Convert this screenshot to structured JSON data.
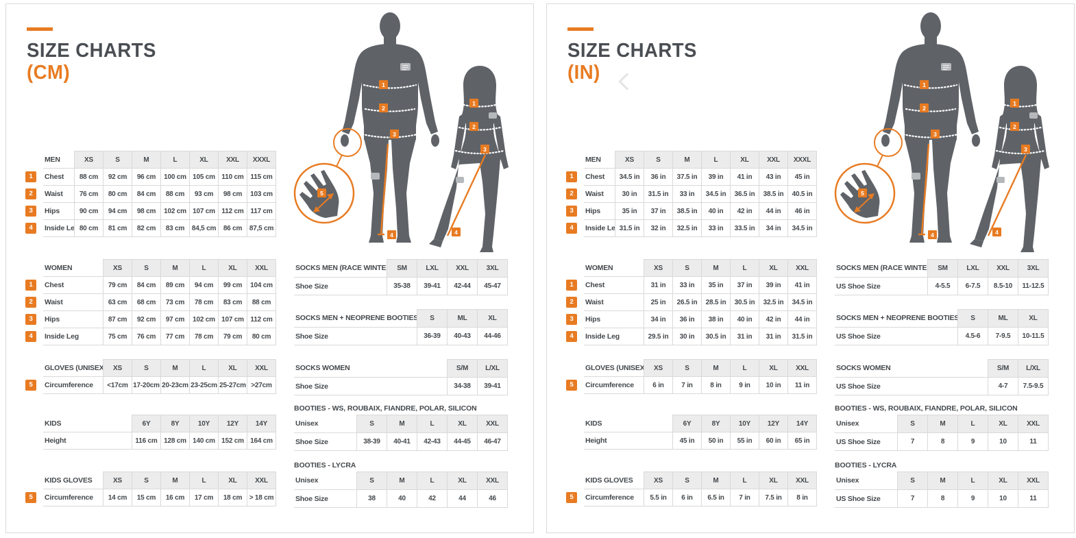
{
  "colors": {
    "accent_orange": "#e87b22",
    "heading_gray": "#4a4e53",
    "text_gray": "#44484c",
    "table_header_bg": "#ececec",
    "table_border": "#d9d9d9",
    "silhouette_gray": "#5f6368"
  },
  "figure": {
    "markers": {
      "m1": "1",
      "m2": "2",
      "m3": "3",
      "m4": "4",
      "m5": "5"
    }
  },
  "panels": {
    "cm": {
      "title": "SIZE CHARTS",
      "unit": "(CM)",
      "tables": {
        "men": {
          "label": "MEN",
          "cols": [
            "XS",
            "S",
            "M",
            "L",
            "XL",
            "XXL",
            "XXXL"
          ],
          "rows": [
            {
              "num": "1",
              "label": "Chest",
              "values": [
                "88 cm",
                "92 cm",
                "96 cm",
                "100 cm",
                "105 cm",
                "110 cm",
                "115 cm"
              ]
            },
            {
              "num": "2",
              "label": "Waist",
              "values": [
                "76 cm",
                "80 cm",
                "84 cm",
                "88 cm",
                "93 cm",
                "98 cm",
                "103 cm"
              ]
            },
            {
              "num": "3",
              "label": "Hips",
              "values": [
                "90 cm",
                "94 cm",
                "98 cm",
                "102 cm",
                "107 cm",
                "112 cm",
                "117 cm"
              ]
            },
            {
              "num": "4",
              "label": "Inside Leg",
              "values": [
                "80 cm",
                "81 cm",
                "82 cm",
                "83 cm",
                "84,5 cm",
                "86 cm",
                "87,5 cm"
              ]
            }
          ]
        },
        "women": {
          "label": "WOMEN",
          "cols": [
            "XS",
            "S",
            "M",
            "L",
            "XL",
            "XXL"
          ],
          "rows": [
            {
              "num": "1",
              "label": "Chest",
              "values": [
                "79 cm",
                "84 cm",
                "89 cm",
                "94 cm",
                "99 cm",
                "104 cm"
              ]
            },
            {
              "num": "2",
              "label": "Waist",
              "values": [
                "63 cm",
                "68 cm",
                "73 cm",
                "78 cm",
                "83 cm",
                "88 cm"
              ]
            },
            {
              "num": "3",
              "label": "Hips",
              "values": [
                "87 cm",
                "92 cm",
                "97 cm",
                "102 cm",
                "107 cm",
                "112 cm"
              ]
            },
            {
              "num": "4",
              "label": "Inside Leg",
              "values": [
                "75 cm",
                "76 cm",
                "77 cm",
                "78 cm",
                "79 cm",
                "80 cm"
              ]
            }
          ]
        },
        "gloves": {
          "label": "GLOVES (UNISEX)",
          "cols": [
            "XS",
            "S",
            "M",
            "L",
            "XL",
            "XXL"
          ],
          "rows": [
            {
              "num": "5",
              "label": "Circumference",
              "values": [
                "<17cm",
                "17-20cm",
                "20-23cm",
                "23-25cm",
                "25-27cm",
                ">27cm"
              ]
            }
          ]
        },
        "kids": {
          "label": "KIDS",
          "cols": [
            "6Y",
            "8Y",
            "10Y",
            "12Y",
            "14Y"
          ],
          "rows": [
            {
              "label": "Height",
              "values": [
                "116 cm",
                "128 cm",
                "140 cm",
                "152 cm",
                "164 cm"
              ]
            }
          ]
        },
        "kids_gloves": {
          "label": "KIDS GLOVES",
          "cols": [
            "XS",
            "S",
            "M",
            "L",
            "XL",
            "XXL"
          ],
          "rows": [
            {
              "num": "5",
              "label": "Circumference",
              "values": [
                "14 cm",
                "15 cm",
                "16 cm",
                "17 cm",
                "18 cm",
                "> 18 cm"
              ]
            }
          ]
        },
        "socks_men": {
          "label": "SOCKS MEN (RACE WINTER)",
          "cols": [
            "SM",
            "LXL",
            "XXL",
            "3XL"
          ],
          "rows": [
            {
              "label": "Shoe Size",
              "values": [
                "35-38",
                "39-41",
                "42-44",
                "45-47"
              ]
            }
          ]
        },
        "socks_neoprene": {
          "label": "SOCKS MEN + NEOPRENE BOOTIES",
          "cols": [
            "S",
            "ML",
            "XL"
          ],
          "rows": [
            {
              "label": "Shoe Size",
              "values": [
                "36-39",
                "40-43",
                "44-46"
              ]
            }
          ]
        },
        "socks_women": {
          "label": "SOCKS WOMEN",
          "cols": [
            "S/M",
            "L/XL"
          ],
          "rows": [
            {
              "label": "Shoe Size",
              "values": [
                "34-38",
                "39-41"
              ]
            }
          ]
        },
        "booties_ws": {
          "title": "BOOTIES - WS, ROUBAIX, FIANDRE, POLAR, SILICON",
          "label": "Unisex",
          "cols": [
            "S",
            "M",
            "L",
            "XL",
            "XXL"
          ],
          "rows": [
            {
              "label": "Shoe Size",
              "values": [
                "38-39",
                "40-41",
                "42-43",
                "44-45",
                "46-47"
              ]
            }
          ]
        },
        "booties_lycra": {
          "title": "BOOTIES - LYCRA",
          "label": "Unisex",
          "cols": [
            "S",
            "M",
            "L",
            "XL",
            "XXL"
          ],
          "rows": [
            {
              "label": "Shoe Size",
              "values": [
                "38",
                "40",
                "42",
                "44",
                "46"
              ]
            }
          ]
        }
      }
    },
    "in": {
      "title": "SIZE CHARTS",
      "unit": "(IN)",
      "tables": {
        "men": {
          "label": "MEN",
          "cols": [
            "XS",
            "S",
            "M",
            "L",
            "XL",
            "XXL",
            "XXXL"
          ],
          "rows": [
            {
              "num": "1",
              "label": "Chest",
              "values": [
                "34.5 in",
                "36 in",
                "37.5 in",
                "39 in",
                "41 in",
                "43 in",
                "45 in"
              ]
            },
            {
              "num": "2",
              "label": "Waist",
              "values": [
                "30 in",
                "31.5 in",
                "33 in",
                "34.5 in",
                "36.5 in",
                "38.5 in",
                "40.5 in"
              ]
            },
            {
              "num": "3",
              "label": "Hips",
              "values": [
                "35 in",
                "37 in",
                "38.5 in",
                "40 in",
                "42 in",
                "44 in",
                "46 in"
              ]
            },
            {
              "num": "4",
              "label": "Inside Leg",
              "values": [
                "31.5 in",
                "32 in",
                "32.5 in",
                "33 in",
                "33.5 in",
                "34 in",
                "34.5 in"
              ]
            }
          ]
        },
        "women": {
          "label": "WOMEN",
          "cols": [
            "XS",
            "S",
            "M",
            "L",
            "XL",
            "XXL"
          ],
          "rows": [
            {
              "num": "1",
              "label": "Chest",
              "values": [
                "31 in",
                "33 in",
                "35 in",
                "37 in",
                "39 in",
                "41 in"
              ]
            },
            {
              "num": "2",
              "label": "Waist",
              "values": [
                "25 in",
                "26.5 in",
                "28.5 in",
                "30.5 in",
                "32.5 in",
                "34.5 in"
              ]
            },
            {
              "num": "3",
              "label": "Hips",
              "values": [
                "34 in",
                "36 in",
                "38 in",
                "40 in",
                "42 in",
                "44 in"
              ]
            },
            {
              "num": "4",
              "label": "Inside Leg",
              "values": [
                "29.5 in",
                "30 in",
                "30.5 in",
                "31 in",
                "31 in",
                "31.5 in"
              ]
            }
          ]
        },
        "gloves": {
          "label": "GLOVES (UNISEX)",
          "cols": [
            "XS",
            "S",
            "M",
            "L",
            "XL",
            "XXL"
          ],
          "rows": [
            {
              "num": "5",
              "label": "Circumference",
              "values": [
                "6 in",
                "7 in",
                "8 in",
                "9 in",
                "10 in",
                "11 in"
              ]
            }
          ]
        },
        "kids": {
          "label": "KIDS",
          "cols": [
            "6Y",
            "8Y",
            "10Y",
            "12Y",
            "14Y"
          ],
          "rows": [
            {
              "label": "Height",
              "values": [
                "45 in",
                "50 in",
                "55 in",
                "60 in",
                "65 in"
              ]
            }
          ]
        },
        "kids_gloves": {
          "label": "KIDS GLOVES",
          "cols": [
            "XS",
            "S",
            "M",
            "L",
            "XL",
            "XXL"
          ],
          "rows": [
            {
              "num": "5",
              "label": "Circumference",
              "values": [
                "5.5 in",
                "6 in",
                "6.5 in",
                "7 in",
                "7.5 in",
                "8 in"
              ]
            }
          ]
        },
        "socks_men": {
          "label": "SOCKS MEN (RACE WINTER)",
          "cols": [
            "SM",
            "LXL",
            "XXL",
            "3XL"
          ],
          "rows": [
            {
              "label": "US Shoe Size",
              "values": [
                "4-5.5",
                "6-7.5",
                "8.5-10",
                "11-12.5"
              ]
            }
          ]
        },
        "socks_neoprene": {
          "label": "SOCKS MEN + NEOPRENE BOOTIES",
          "cols": [
            "S",
            "ML",
            "XL"
          ],
          "rows": [
            {
              "label": "US Shoe Size",
              "values": [
                "4.5-6",
                "7-9.5",
                "10-11.5"
              ]
            }
          ]
        },
        "socks_women": {
          "label": "SOCKS WOMEN",
          "cols": [
            "S/M",
            "L/XL"
          ],
          "rows": [
            {
              "label": "US Shoe Size",
              "values": [
                "4-7",
                "7.5-9.5"
              ]
            }
          ]
        },
        "booties_ws": {
          "title": "BOOTIES - WS, ROUBAIX, FIANDRE, POLAR, SILICON",
          "label": "Unisex",
          "cols": [
            "S",
            "M",
            "L",
            "XL",
            "XXL"
          ],
          "rows": [
            {
              "label": "US Shoe Size",
              "values": [
                "7",
                "8",
                "9",
                "10",
                "11"
              ]
            }
          ]
        },
        "booties_lycra": {
          "title": "BOOTIES - LYCRA",
          "label": "Unisex",
          "cols": [
            "S",
            "M",
            "L",
            "XL",
            "XXL"
          ],
          "rows": [
            {
              "label": "US Shoe Size",
              "values": [
                "7",
                "8",
                "9",
                "10",
                "11"
              ]
            }
          ]
        }
      }
    }
  }
}
